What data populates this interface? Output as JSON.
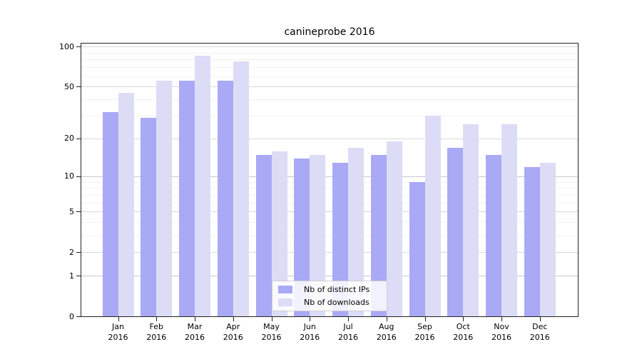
{
  "title": "canineprobe 2016",
  "chart_data": {
    "type": "bar",
    "title": "canineprobe 2016",
    "yscale": "log1p",
    "ylim": [
      0,
      100
    ],
    "yticks": [
      0,
      1,
      2,
      5,
      10,
      20,
      50,
      100
    ],
    "yticks_minor": [
      3,
      4,
      6,
      7,
      8,
      9,
      30,
      40,
      60,
      70,
      80,
      90
    ],
    "grid": "both",
    "legend_position": "lower center",
    "categories": [
      "Jan 2016",
      "Feb 2016",
      "Mar 2016",
      "Apr 2016",
      "May 2016",
      "Jun 2016",
      "Jul 2016",
      "Aug 2016",
      "Sep 2016",
      "Oct 2016",
      "Nov 2016",
      "Dec 2016"
    ],
    "series": [
      {
        "name": "Nb of distinct IPs",
        "color": "#a9a9f5",
        "values": [
          32,
          29,
          56,
          56,
          15,
          14,
          13,
          15,
          9,
          17,
          15,
          12
        ]
      },
      {
        "name": "Nb of downloads",
        "color": "#dcdcf7",
        "values": [
          45,
          56,
          86,
          78,
          16,
          15,
          17,
          19,
          30,
          26,
          26,
          13
        ]
      }
    ]
  },
  "colors": {
    "background": "#ffffff",
    "spine": "#222222",
    "grid_major": "#d9d9d9",
    "grid_major_dark": "#c9c9c9",
    "grid_minor": "#f1f1f1",
    "text": "#000000"
  }
}
